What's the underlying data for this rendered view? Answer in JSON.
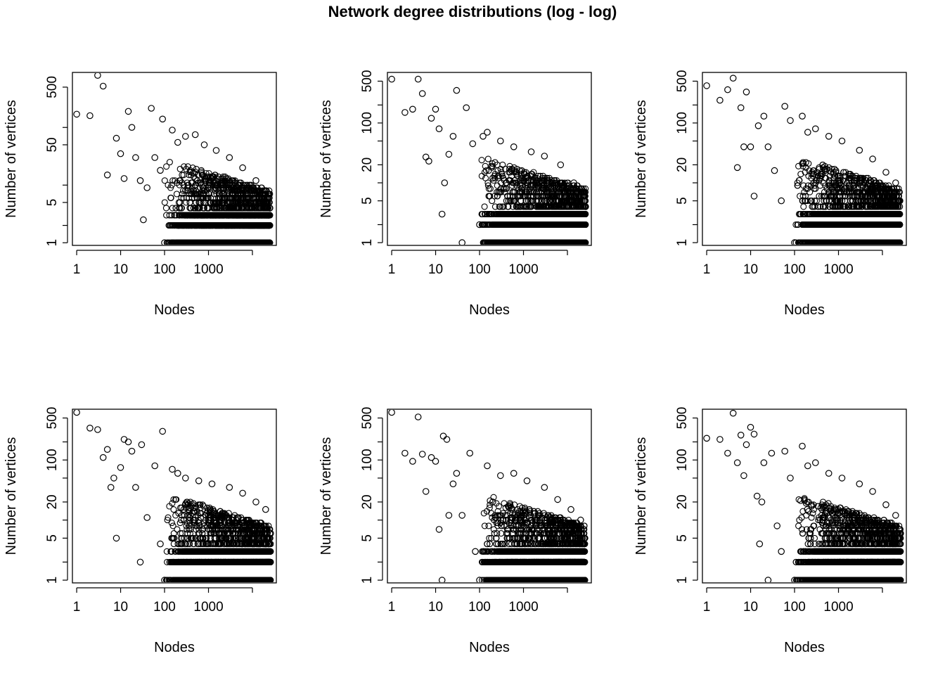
{
  "page_title": "Network degree distributions (log - log)",
  "chart_data": [
    {
      "type": "scatter",
      "xlabel": "Nodes",
      "ylabel": "Number of vertices",
      "x_scale": "log",
      "y_scale": "log",
      "xlim": [
        0.8,
        35000
      ],
      "ylim": [
        0.9,
        900
      ],
      "x_ticks": [
        1,
        10,
        100,
        1000
      ],
      "x_tick_labels": [
        "1",
        "10",
        "100",
        "1000"
      ],
      "y_ticks": [
        1,
        2,
        5,
        10,
        50,
        100,
        500
      ],
      "y_tick_labels": [
        "1",
        "",
        "5",
        "",
        "50",
        "",
        "500"
      ],
      "key_points": [
        [
          1,
          170
        ],
        [
          2,
          160
        ],
        [
          3,
          800
        ],
        [
          4,
          520
        ],
        [
          5,
          15
        ],
        [
          8,
          65
        ],
        [
          10,
          35
        ],
        [
          12,
          13
        ],
        [
          15,
          190
        ],
        [
          18,
          100
        ],
        [
          22,
          30
        ],
        [
          28,
          12
        ],
        [
          33,
          2.5
        ],
        [
          40,
          9
        ],
        [
          50,
          215
        ],
        [
          60,
          30
        ],
        [
          80,
          18
        ],
        [
          90,
          140
        ],
        [
          100,
          1
        ],
        [
          150,
          90
        ],
        [
          200,
          55
        ],
        [
          300,
          70
        ],
        [
          500,
          75
        ],
        [
          800,
          50
        ],
        [
          1500,
          40
        ],
        [
          3000,
          30
        ],
        [
          6000,
          20
        ],
        [
          12000,
          12
        ],
        [
          20000,
          8
        ],
        [
          25000,
          4
        ]
      ],
      "min_degree": 1,
      "max_degree": 25000,
      "max_count": 800
    },
    {
      "type": "scatter",
      "xlabel": "Nodes",
      "ylabel": "Number of vertices",
      "x_scale": "log",
      "y_scale": "log",
      "xlim": [
        0.8,
        35000
      ],
      "ylim": [
        0.9,
        700
      ],
      "x_ticks": [
        1,
        10,
        100,
        1000
      ],
      "x_tick_labels": [
        "1",
        "10",
        "100",
        "1000"
      ],
      "y_ticks": [
        1,
        2,
        5,
        10,
        20,
        50,
        100,
        200,
        500
      ],
      "y_tick_labels": [
        "1",
        "",
        "5",
        "",
        "20",
        "",
        "100",
        "",
        "500"
      ],
      "key_points": [
        [
          1,
          540
        ],
        [
          2,
          150
        ],
        [
          3,
          170
        ],
        [
          4,
          540
        ],
        [
          5,
          310
        ],
        [
          6,
          27
        ],
        [
          7,
          23
        ],
        [
          8,
          120
        ],
        [
          10,
          170
        ],
        [
          12,
          80
        ],
        [
          14,
          3
        ],
        [
          16,
          10
        ],
        [
          20,
          30
        ],
        [
          25,
          60
        ],
        [
          30,
          350
        ],
        [
          40,
          1
        ],
        [
          50,
          180
        ],
        [
          70,
          45
        ],
        [
          100,
          2
        ],
        [
          120,
          60
        ],
        [
          150,
          70
        ],
        [
          200,
          12
        ],
        [
          300,
          50
        ],
        [
          600,
          40
        ],
        [
          1500,
          33
        ],
        [
          3000,
          28
        ],
        [
          7000,
          20
        ],
        [
          14000,
          10
        ],
        [
          22000,
          7
        ],
        [
          26000,
          4
        ]
      ],
      "min_degree": 1,
      "max_degree": 26000,
      "max_count": 540
    },
    {
      "type": "scatter",
      "xlabel": "Nodes",
      "ylabel": "Number of vertices",
      "x_scale": "log",
      "y_scale": "log",
      "xlim": [
        0.8,
        35000
      ],
      "ylim": [
        0.9,
        700
      ],
      "x_ticks": [
        1,
        10,
        100,
        1000
      ],
      "x_tick_labels": [
        "1",
        "10",
        "100",
        "1000"
      ],
      "y_ticks": [
        1,
        2,
        5,
        10,
        20,
        50,
        100,
        200,
        500
      ],
      "y_tick_labels": [
        "1",
        "",
        "5",
        "",
        "20",
        "",
        "100",
        "",
        "500"
      ],
      "key_points": [
        [
          1,
          420
        ],
        [
          2,
          240
        ],
        [
          3,
          360
        ],
        [
          4,
          560
        ],
        [
          5,
          18
        ],
        [
          6,
          180
        ],
        [
          7,
          40
        ],
        [
          8,
          330
        ],
        [
          10,
          40
        ],
        [
          12,
          6
        ],
        [
          15,
          90
        ],
        [
          20,
          130
        ],
        [
          25,
          40
        ],
        [
          35,
          16
        ],
        [
          50,
          5
        ],
        [
          60,
          190
        ],
        [
          80,
          110
        ],
        [
          100,
          1
        ],
        [
          150,
          130
        ],
        [
          200,
          70
        ],
        [
          300,
          80
        ],
        [
          600,
          60
        ],
        [
          1200,
          50
        ],
        [
          3000,
          35
        ],
        [
          6000,
          25
        ],
        [
          12000,
          15
        ],
        [
          20000,
          10
        ],
        [
          25000,
          5
        ]
      ],
      "min_degree": 1,
      "max_degree": 25000,
      "max_count": 560
    },
    {
      "type": "scatter",
      "xlabel": "Nodes",
      "ylabel": "Number of vertices",
      "x_scale": "log",
      "y_scale": "log",
      "xlim": [
        0.8,
        35000
      ],
      "ylim": [
        0.9,
        700
      ],
      "x_ticks": [
        1,
        10,
        100,
        1000
      ],
      "x_tick_labels": [
        "1",
        "10",
        "100",
        "1000"
      ],
      "y_ticks": [
        1,
        2,
        5,
        10,
        20,
        50,
        100,
        200,
        500
      ],
      "y_tick_labels": [
        "1",
        "",
        "5",
        "",
        "20",
        "",
        "100",
        "",
        "500"
      ],
      "key_points": [
        [
          1,
          620
        ],
        [
          2,
          340
        ],
        [
          3,
          320
        ],
        [
          4,
          110
        ],
        [
          5,
          150
        ],
        [
          6,
          35
        ],
        [
          7,
          50
        ],
        [
          8,
          5
        ],
        [
          10,
          75
        ],
        [
          12,
          220
        ],
        [
          15,
          200
        ],
        [
          18,
          140
        ],
        [
          22,
          35
        ],
        [
          28,
          2
        ],
        [
          30,
          180
        ],
        [
          40,
          11
        ],
        [
          60,
          80
        ],
        [
          80,
          4
        ],
        [
          90,
          300
        ],
        [
          100,
          1
        ],
        [
          150,
          70
        ],
        [
          200,
          60
        ],
        [
          300,
          50
        ],
        [
          600,
          45
        ],
        [
          1200,
          40
        ],
        [
          3000,
          35
        ],
        [
          6000,
          28
        ],
        [
          12000,
          20
        ],
        [
          20000,
          15
        ],
        [
          26000,
          6
        ]
      ],
      "min_degree": 1,
      "max_degree": 26000,
      "max_count": 620
    },
    {
      "type": "scatter",
      "xlabel": "Nodes",
      "ylabel": "Number of vertices",
      "x_scale": "log",
      "y_scale": "log",
      "xlim": [
        0.8,
        35000
      ],
      "ylim": [
        0.9,
        700
      ],
      "x_ticks": [
        1,
        10,
        100,
        1000
      ],
      "x_tick_labels": [
        "1",
        "10",
        "100",
        "1000"
      ],
      "y_ticks": [
        1,
        2,
        5,
        10,
        20,
        50,
        100,
        200,
        500
      ],
      "y_tick_labels": [
        "1",
        "",
        "5",
        "",
        "20",
        "",
        "100",
        "",
        "500"
      ],
      "key_points": [
        [
          1,
          620
        ],
        [
          2,
          130
        ],
        [
          3,
          95
        ],
        [
          4,
          520
        ],
        [
          5,
          125
        ],
        [
          6,
          30
        ],
        [
          8,
          110
        ],
        [
          10,
          95
        ],
        [
          12,
          7
        ],
        [
          14,
          1
        ],
        [
          15,
          250
        ],
        [
          18,
          220
        ],
        [
          20,
          12
        ],
        [
          25,
          40
        ],
        [
          30,
          60
        ],
        [
          40,
          12
        ],
        [
          60,
          130
        ],
        [
          80,
          3
        ],
        [
          100,
          1
        ],
        [
          150,
          80
        ],
        [
          200,
          20
        ],
        [
          300,
          55
        ],
        [
          600,
          60
        ],
        [
          1200,
          45
        ],
        [
          3000,
          35
        ],
        [
          6000,
          22
        ],
        [
          12000,
          15
        ],
        [
          20000,
          10
        ],
        [
          25000,
          5
        ]
      ],
      "min_degree": 1,
      "max_degree": 25000,
      "max_count": 620
    },
    {
      "type": "scatter",
      "xlabel": "Nodes",
      "ylabel": "Number of vertices",
      "x_scale": "log",
      "y_scale": "log",
      "xlim": [
        0.8,
        35000
      ],
      "ylim": [
        0.9,
        700
      ],
      "x_ticks": [
        1,
        10,
        100,
        1000
      ],
      "x_tick_labels": [
        "1",
        "10",
        "100",
        "1000"
      ],
      "y_ticks": [
        1,
        2,
        5,
        10,
        20,
        50,
        100,
        200,
        500
      ],
      "y_tick_labels": [
        "1",
        "",
        "5",
        "",
        "20",
        "",
        "100",
        "",
        "500"
      ],
      "key_points": [
        [
          1,
          230
        ],
        [
          2,
          220
        ],
        [
          3,
          130
        ],
        [
          4,
          600
        ],
        [
          5,
          90
        ],
        [
          6,
          260
        ],
        [
          7,
          55
        ],
        [
          8,
          180
        ],
        [
          10,
          350
        ],
        [
          12,
          270
        ],
        [
          14,
          25
        ],
        [
          16,
          4
        ],
        [
          18,
          20
        ],
        [
          20,
          90
        ],
        [
          25,
          1
        ],
        [
          30,
          130
        ],
        [
          40,
          8
        ],
        [
          50,
          3
        ],
        [
          60,
          140
        ],
        [
          80,
          50
        ],
        [
          100,
          1
        ],
        [
          150,
          170
        ],
        [
          200,
          80
        ],
        [
          300,
          90
        ],
        [
          600,
          60
        ],
        [
          1200,
          50
        ],
        [
          3000,
          40
        ],
        [
          6000,
          30
        ],
        [
          12000,
          18
        ],
        [
          20000,
          12
        ],
        [
          26000,
          6
        ]
      ],
      "min_degree": 1,
      "max_degree": 26000,
      "max_count": 600
    }
  ]
}
